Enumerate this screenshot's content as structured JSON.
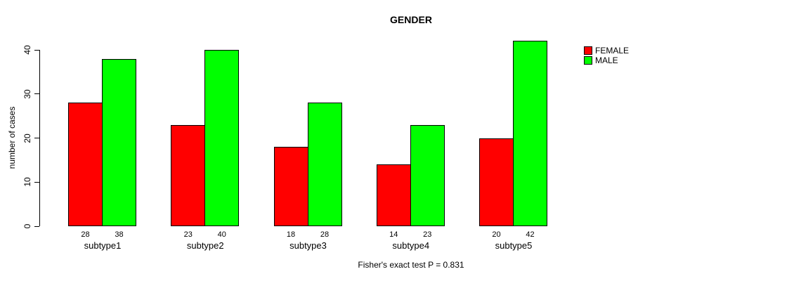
{
  "chart_data": {
    "type": "bar",
    "grouped": true,
    "title": "GENDER",
    "xlabel": "",
    "ylabel": "number of cases",
    "caption": "Fisher's exact test P = 0.831",
    "categories": [
      "subtype1",
      "subtype2",
      "subtype3",
      "subtype4",
      "subtype5"
    ],
    "series": [
      {
        "name": "FEMALE",
        "color": "#FF0000",
        "values": [
          28,
          23,
          18,
          14,
          20
        ]
      },
      {
        "name": "MALE",
        "color": "#00FF00",
        "values": [
          38,
          40,
          28,
          23,
          42
        ]
      }
    ],
    "ylim": [
      0,
      40
    ],
    "yticks": [
      0,
      10,
      20,
      30,
      40
    ],
    "bar_value_labels_shown": true,
    "grid": false,
    "legend_position": "right",
    "background_color": "#ffffff",
    "axis_color": "#000000",
    "text_color": "#000000"
  }
}
